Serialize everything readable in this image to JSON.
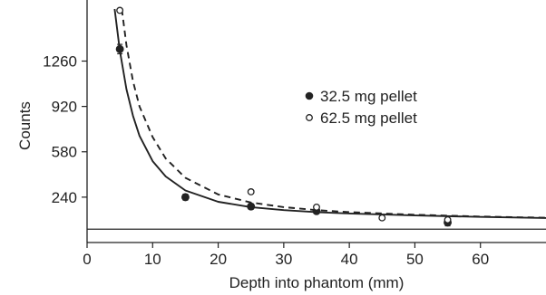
{
  "chart_data": {
    "type": "scatter",
    "xlabel": "Depth into phantom (mm)",
    "ylabel": "Counts",
    "xlim": [
      0,
      70
    ],
    "ylim": [
      -100,
      1650
    ],
    "x_ticks": [
      0,
      10,
      20,
      30,
      40,
      50,
      60
    ],
    "y_ticks": [
      240,
      580,
      920,
      1260
    ],
    "x_tick_labels": [
      "0",
      "10",
      "20",
      "30",
      "40",
      "50",
      "60"
    ],
    "y_tick_labels": [
      "240",
      "580",
      "920",
      "1260"
    ],
    "grid": false,
    "legend_position": "center-right",
    "baseline_y": 0,
    "series": [
      {
        "name": "32.5 mg pellet",
        "marker": "filled-circle",
        "color": "#222222",
        "fit_line": "solid",
        "points": [
          {
            "x": 5,
            "y": 1350,
            "err": 35
          },
          {
            "x": 15,
            "y": 240,
            "err": 22
          },
          {
            "x": 25,
            "y": 170,
            "err": 20
          },
          {
            "x": 35,
            "y": 135,
            "err": 15
          },
          {
            "x": 55,
            "y": 50,
            "err": 25
          }
        ],
        "fit": [
          {
            "x": 4.2,
            "y": 1650
          },
          {
            "x": 5,
            "y": 1340
          },
          {
            "x": 6,
            "y": 1050
          },
          {
            "x": 7,
            "y": 850
          },
          {
            "x": 8,
            "y": 700
          },
          {
            "x": 10,
            "y": 510
          },
          {
            "x": 12,
            "y": 395
          },
          {
            "x": 15,
            "y": 290
          },
          {
            "x": 20,
            "y": 205
          },
          {
            "x": 25,
            "y": 165
          },
          {
            "x": 30,
            "y": 143
          },
          {
            "x": 35,
            "y": 128
          },
          {
            "x": 40,
            "y": 118
          },
          {
            "x": 50,
            "y": 103
          },
          {
            "x": 60,
            "y": 92
          },
          {
            "x": 70,
            "y": 84
          }
        ]
      },
      {
        "name": "62.5 mg pellet",
        "marker": "open-circle",
        "color": "#222222",
        "fit_line": "dashed",
        "points": [
          {
            "x": 5,
            "y": 1640
          },
          {
            "x": 25,
            "y": 280
          },
          {
            "x": 35,
            "y": 165
          },
          {
            "x": 45,
            "y": 85
          },
          {
            "x": 55,
            "y": 70
          }
        ],
        "fit": [
          {
            "x": 5.3,
            "y": 1650
          },
          {
            "x": 6,
            "y": 1380
          },
          {
            "x": 7,
            "y": 1110
          },
          {
            "x": 8,
            "y": 920
          },
          {
            "x": 10,
            "y": 690
          },
          {
            "x": 12,
            "y": 530
          },
          {
            "x": 15,
            "y": 385
          },
          {
            "x": 20,
            "y": 260
          },
          {
            "x": 25,
            "y": 200
          },
          {
            "x": 30,
            "y": 165
          },
          {
            "x": 35,
            "y": 143
          },
          {
            "x": 40,
            "y": 128
          },
          {
            "x": 50,
            "y": 108
          },
          {
            "x": 60,
            "y": 95
          },
          {
            "x": 70,
            "y": 86
          }
        ]
      }
    ]
  }
}
